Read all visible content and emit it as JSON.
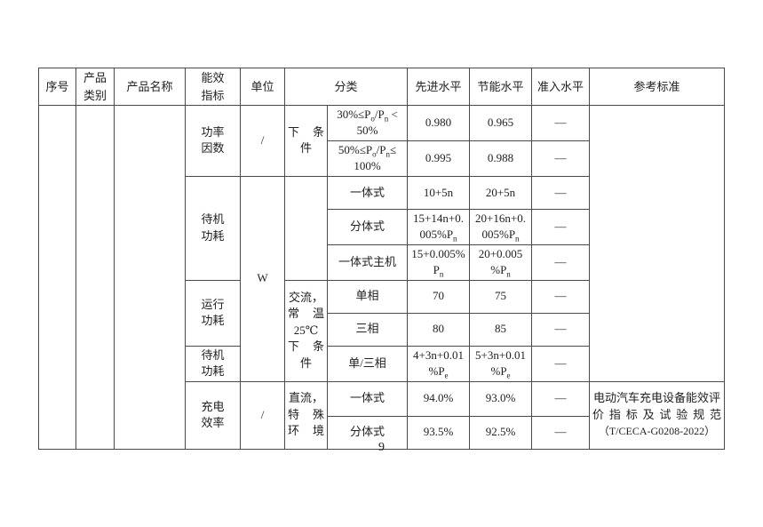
{
  "page": {
    "number": "9"
  },
  "table": {
    "headers": {
      "serial": "序号",
      "product_category": "产品<br>类别",
      "product_name": "产品名称",
      "indicator": "能效<br>指标",
      "unit": "单位",
      "classification": "分类",
      "advanced": "先进水平",
      "saving": "节能水平",
      "entry": "准入水平",
      "reference": "参考标准"
    },
    "groups": [
      {
        "indicator": "功率<br>因数",
        "unit": "/",
        "condition": "<span class='j'>下 条</span><br>件",
        "rows": [
          {
            "category": "30%≤P<sub>o</sub>/P<sub>n</sub> &lt;<br>50%",
            "advanced": "0.980",
            "saving": "0.965",
            "entry": "—"
          },
          {
            "category": "50%≤P<sub>o</sub>/P<sub>n</sub>≤<br>100%",
            "advanced": "0.995",
            "saving": "0.988",
            "entry": "—"
          }
        ]
      },
      {
        "indicator": "待机<br>功耗",
        "unit": "W",
        "condition": "",
        "rows": [
          {
            "category": "一体式",
            "advanced": "10+5n",
            "saving": "20+5n",
            "entry": "—"
          },
          {
            "category": "分体式",
            "advanced": "15+14n+0.<br>005%P<sub>n</sub>",
            "saving": "20+16n+0.<br>005%P<sub>n</sub>",
            "entry": "—"
          },
          {
            "category": "一体式主机",
            "advanced": "15+0.005%<br>P<sub>n</sub>",
            "saving": "20+0.005<br>%P<sub>n</sub>",
            "entry": "—"
          }
        ]
      },
      {
        "indicator": "运行<br>功耗",
        "condition": "交流，<br><span class='j'>常 温</span><br>25℃<br><span class='j'>下 条</span><br>件",
        "rows": [
          {
            "category": "单相",
            "advanced": "70",
            "saving": "75",
            "entry": "—"
          },
          {
            "category": "三相",
            "advanced": "80",
            "saving": "85",
            "entry": "—"
          }
        ]
      },
      {
        "indicator": "待机<br>功耗",
        "rows": [
          {
            "category": "单/三相",
            "advanced": "4+3n+0.01<br>%P<sub>e</sub>",
            "saving": "5+3n+0.01<br>%P<sub>e</sub>",
            "entry": "—"
          }
        ]
      },
      {
        "indicator": "充电<br>效率",
        "unit": "/",
        "condition": "直流，<br><span class='j'>特 殊</span><br><span class='j'>环 境</span>",
        "rows": [
          {
            "category": "一体式",
            "advanced": "94.0%",
            "saving": "93.0%",
            "entry": "—"
          },
          {
            "category": "分体式",
            "advanced": "93.5%",
            "saving": "92.5%",
            "entry": "—"
          }
        ]
      }
    ],
    "reference_standard": "电动汽车充电设备能效评<br><span class='j'>价指标及试验规范</span><br><span class='s'>（T/CECA-G0208-2022）</span>"
  }
}
